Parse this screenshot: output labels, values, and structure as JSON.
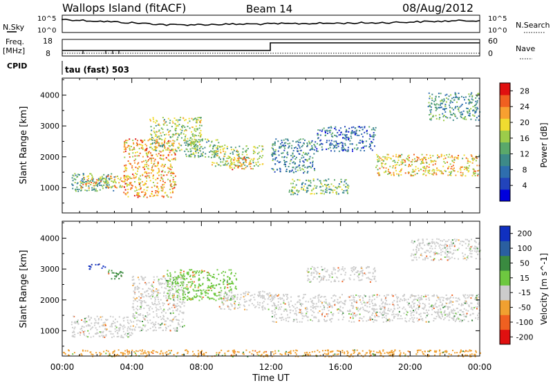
{
  "header": {
    "station": "Wallops Island (fitACF)",
    "beam": "Beam 14",
    "date": "08/Aug/2012"
  },
  "noise_panel": {
    "left_label": "N.Sky",
    "right_label": "N.Search",
    "left_ticks": [
      "10^5",
      "10^0"
    ],
    "right_ticks": [
      "10^5",
      "10^0"
    ]
  },
  "freq_panel": {
    "left_label_1": "Freq.",
    "left_label_2": "[MHz]",
    "right_label": "Nave",
    "left_ticks": [
      "18",
      "8"
    ],
    "right_ticks": [
      "60",
      "0"
    ],
    "step_time_ut": "12:00"
  },
  "cpid": {
    "label": "CPID",
    "program": "tau (fast) 503"
  },
  "chart_data": [
    {
      "type": "heatmap",
      "title": "",
      "ylabel": "Slant Range [km]",
      "ylim": [
        180,
        4550
      ],
      "yticks": [
        1000,
        2000,
        3000,
        4000
      ],
      "x_range": [
        "00:00",
        "24:00"
      ],
      "colorbar": {
        "label": "Power [dB]",
        "ticks": [
          4,
          8,
          12,
          16,
          20,
          24,
          28
        ],
        "range": [
          0,
          30
        ],
        "colors": [
          "#0000dd",
          "#2244bb",
          "#2e6eae",
          "#3d8a88",
          "#5aa86a",
          "#9ccc4a",
          "#f0dc30",
          "#f8a030",
          "#f06020",
          "#e01010"
        ]
      },
      "bands": [
        {
          "t": [
            0.5,
            3
          ],
          "r": [
            900,
            1500
          ],
          "level": 12
        },
        {
          "t": [
            1,
            4
          ],
          "r": [
            1000,
            1400
          ],
          "level": 20
        },
        {
          "t": [
            3.5,
            6.5
          ],
          "r": [
            700,
            2600
          ],
          "level": 22
        },
        {
          "t": [
            5,
            8
          ],
          "r": [
            2200,
            3300
          ],
          "level": 16
        },
        {
          "t": [
            7,
            9
          ],
          "r": [
            2000,
            2600
          ],
          "level": 14
        },
        {
          "t": [
            8.5,
            11.5
          ],
          "r": [
            1700,
            2400
          ],
          "level": 16
        },
        {
          "t": [
            9.5,
            11
          ],
          "r": [
            1600,
            2000
          ],
          "level": 22
        },
        {
          "t": [
            12,
            14.5
          ],
          "r": [
            1500,
            2600
          ],
          "level": 10
        },
        {
          "t": [
            13,
            16.5
          ],
          "r": [
            800,
            1300
          ],
          "level": 14
        },
        {
          "t": [
            14.5,
            18
          ],
          "r": [
            2200,
            3000
          ],
          "level": 8
        },
        {
          "t": [
            18,
            24
          ],
          "r": [
            1400,
            2100
          ],
          "level": 20
        },
        {
          "t": [
            21,
            24
          ],
          "r": [
            3200,
            4100
          ],
          "level": 12
        }
      ]
    },
    {
      "type": "heatmap",
      "title": "",
      "ylabel": "Slant Range [km]",
      "xlabel": "Time UT",
      "ylim": [
        180,
        4550
      ],
      "yticks": [
        1000,
        2000,
        3000,
        4000
      ],
      "xticks": [
        "00:00",
        "04:00",
        "08:00",
        "12:00",
        "16:00",
        "20:00",
        "00:00"
      ],
      "x_range": [
        "00:00",
        "24:00"
      ],
      "colorbar": {
        "label": "Velocity [m s^-1]",
        "ticks": [
          200,
          100,
          50,
          15,
          -15,
          -50,
          -100,
          -200
        ],
        "colors": [
          "#1030c0",
          "#2a5fa0",
          "#3a8a40",
          "#6ec840",
          "#cccccc",
          "#f0a030",
          "#f06020",
          "#e01010"
        ]
      },
      "bands": [
        {
          "t": [
            0.5,
            4
          ],
          "r": [
            800,
            1500
          ],
          "level": -15
        },
        {
          "t": [
            1.5,
            2.5
          ],
          "r": [
            3000,
            3200
          ],
          "level": 200
        },
        {
          "t": [
            2.5,
            3.5
          ],
          "r": [
            2700,
            3000
          ],
          "level": 50
        },
        {
          "t": [
            4,
            7
          ],
          "r": [
            1000,
            2800
          ],
          "level": -15
        },
        {
          "t": [
            6,
            10
          ],
          "r": [
            2000,
            3000
          ],
          "level": 15
        },
        {
          "t": [
            9,
            12
          ],
          "r": [
            1700,
            2300
          ],
          "level": -15
        },
        {
          "t": [
            12,
            24
          ],
          "r": [
            1300,
            2200
          ],
          "level": -15
        },
        {
          "t": [
            14,
            18
          ],
          "r": [
            2600,
            3100
          ],
          "level": -15
        },
        {
          "t": [
            20,
            24
          ],
          "r": [
            3300,
            4000
          ],
          "level": -15
        },
        {
          "t": [
            0,
            24
          ],
          "r": [
            180,
            400
          ],
          "level": -50
        }
      ]
    }
  ]
}
